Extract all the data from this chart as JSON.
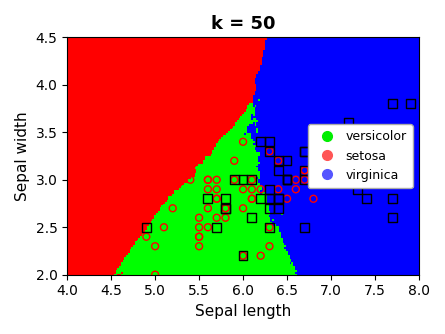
{
  "title": "k = 50",
  "xlabel": "Sepal length",
  "ylabel": "Sepal width",
  "xlim": [
    4,
    8
  ],
  "ylim": [
    2,
    4.5
  ],
  "k": 50,
  "legend_labels": [
    "versicolor",
    "setosa",
    "virginica"
  ],
  "legend_marker_colors": [
    "#00ee00",
    "#ff5555",
    "#5555ff"
  ],
  "cmap_colors": [
    "#ff0000",
    "#00ff00",
    "#0000ff"
  ],
  "title_fontsize": 13,
  "axis_fontsize": 11,
  "legend_fontsize": 9
}
